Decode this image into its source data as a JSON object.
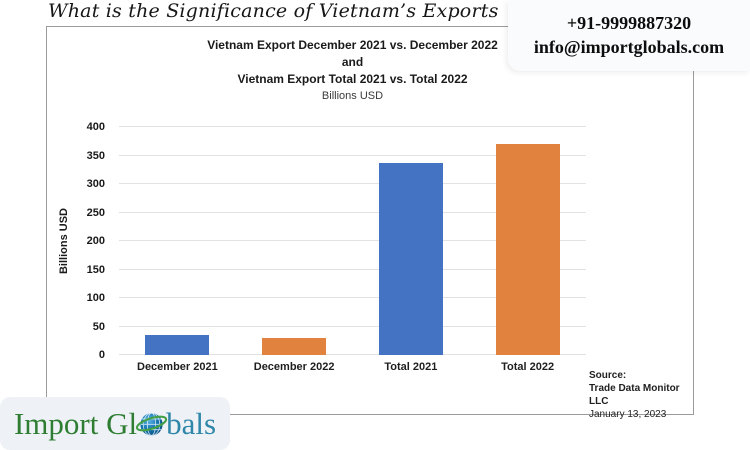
{
  "header": {
    "title": "What is the Significance of Vietnam’s Exports",
    "phone": "+91-9999887320",
    "email": "info@importglobals.com"
  },
  "chart_data": {
    "type": "bar",
    "title_lines": [
      "Vietnam Export December 2021 vs. December 2022",
      "and",
      "Vietnam Export Total 2021 vs. Total 2022"
    ],
    "subtitle": "Billions USD",
    "ylabel": "Billions USD",
    "xlabel": "",
    "categories": [
      "December 2021",
      "December 2022",
      "Total 2021",
      "Total 2022"
    ],
    "values": [
      35,
      30,
      336,
      371
    ],
    "bar_colors": [
      "#4573c4",
      "#e2823f",
      "#4573c4",
      "#e2823f"
    ],
    "ylim": [
      0,
      400
    ],
    "yticks": [
      0,
      50,
      100,
      150,
      200,
      250,
      300,
      350,
      400
    ],
    "grid": true,
    "legend_position": "none"
  },
  "source": {
    "label": "Source:",
    "name": "Trade Data Monitor LLC",
    "date": "January 13, 2023"
  },
  "logo": {
    "text_primary": "Import Gl",
    "text_secondary": "bals",
    "color_primary": "#2e7d32",
    "color_secondary": "#2e86a8",
    "globe_color": "#1372ad",
    "swoosh_color": "#43a047"
  }
}
